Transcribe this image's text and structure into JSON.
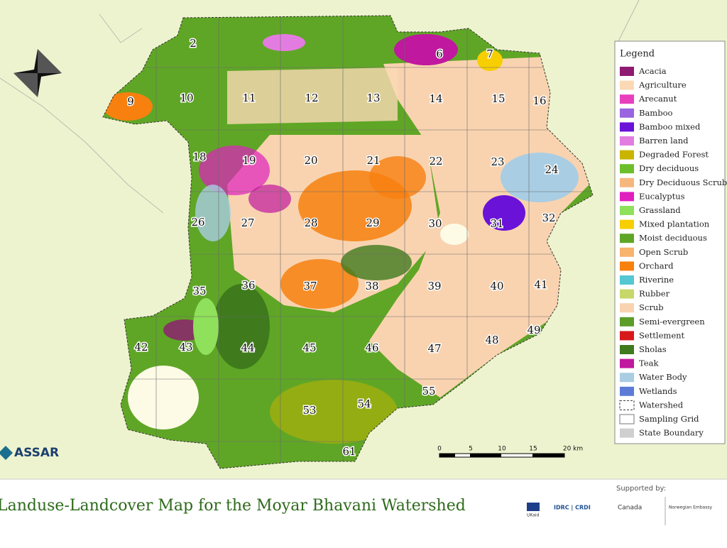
{
  "title": "Landuse-Landcover Map for the Moyar Bhavani Watershed",
  "legend": {
    "title": "Legend",
    "items": [
      {
        "label": "Acacia",
        "color": "#8e1a72"
      },
      {
        "label": "Agriculture",
        "color": "#fbd9b5"
      },
      {
        "label": "Arecanut",
        "color": "#e83fbd"
      },
      {
        "label": "Bamboo",
        "color": "#9a63e0"
      },
      {
        "label": "Bamboo mixed",
        "color": "#6a12d8"
      },
      {
        "label": "Barren land",
        "color": "#e37ce0"
      },
      {
        "label": "Degraded Forest",
        "color": "#c9b400"
      },
      {
        "label": "Dry deciduous",
        "color": "#6cbf2b"
      },
      {
        "label": "Dry Deciduous Scrub",
        "color": "#f6b77e"
      },
      {
        "label": "Eucalyptus",
        "color": "#e01fbf"
      },
      {
        "label": "Grassland",
        "color": "#8fe05a"
      },
      {
        "label": "Mixed plantation",
        "color": "#f7cf00"
      },
      {
        "label": "Moist deciduous",
        "color": "#5fa626"
      },
      {
        "label": "Open Scrub",
        "color": "#f8b36d"
      },
      {
        "label": "Orchard",
        "color": "#f7800f"
      },
      {
        "label": "Riverine",
        "color": "#55c6d4"
      },
      {
        "label": "Rubber",
        "color": "#c7d76a"
      },
      {
        "label": "Scrub",
        "color": "#f9d3b0"
      },
      {
        "label": "Semi-evergreen",
        "color": "#5c9d2a"
      },
      {
        "label": "Settlement",
        "color": "#d7191c"
      },
      {
        "label": "Sholas",
        "color": "#3f7a1d"
      },
      {
        "label": "Teak",
        "color": "#c0189e"
      },
      {
        "label": "Water Body",
        "color": "#a9cde3"
      },
      {
        "label": "Wetlands",
        "color": "#5b7bd6"
      },
      {
        "label": "Watershed",
        "color": "dashed"
      },
      {
        "label": "Sampling Grid",
        "color": "#ffffff"
      },
      {
        "label": "State Boundary",
        "color": "#cfcfcf"
      }
    ]
  },
  "grid_labels": [
    "2",
    "6",
    "7",
    "9",
    "10",
    "11",
    "12",
    "13",
    "14",
    "15",
    "16",
    "18",
    "19",
    "20",
    "21",
    "22",
    "23",
    "24",
    "26",
    "27",
    "28",
    "29",
    "30",
    "31",
    "32",
    "35",
    "36",
    "37",
    "38",
    "39",
    "40",
    "41",
    "42",
    "43",
    "44",
    "45",
    "46",
    "47",
    "48",
    "49",
    "53",
    "54",
    "55",
    "61"
  ],
  "scale": [
    "0",
    "5",
    "10",
    "15",
    "20 km"
  ],
  "logo": "ASSAR",
  "supported_by": "Supported by:",
  "sponsors": [
    "UKaid",
    "IDRC | CRDI",
    "Canada",
    "Norwegian Embassy"
  ]
}
